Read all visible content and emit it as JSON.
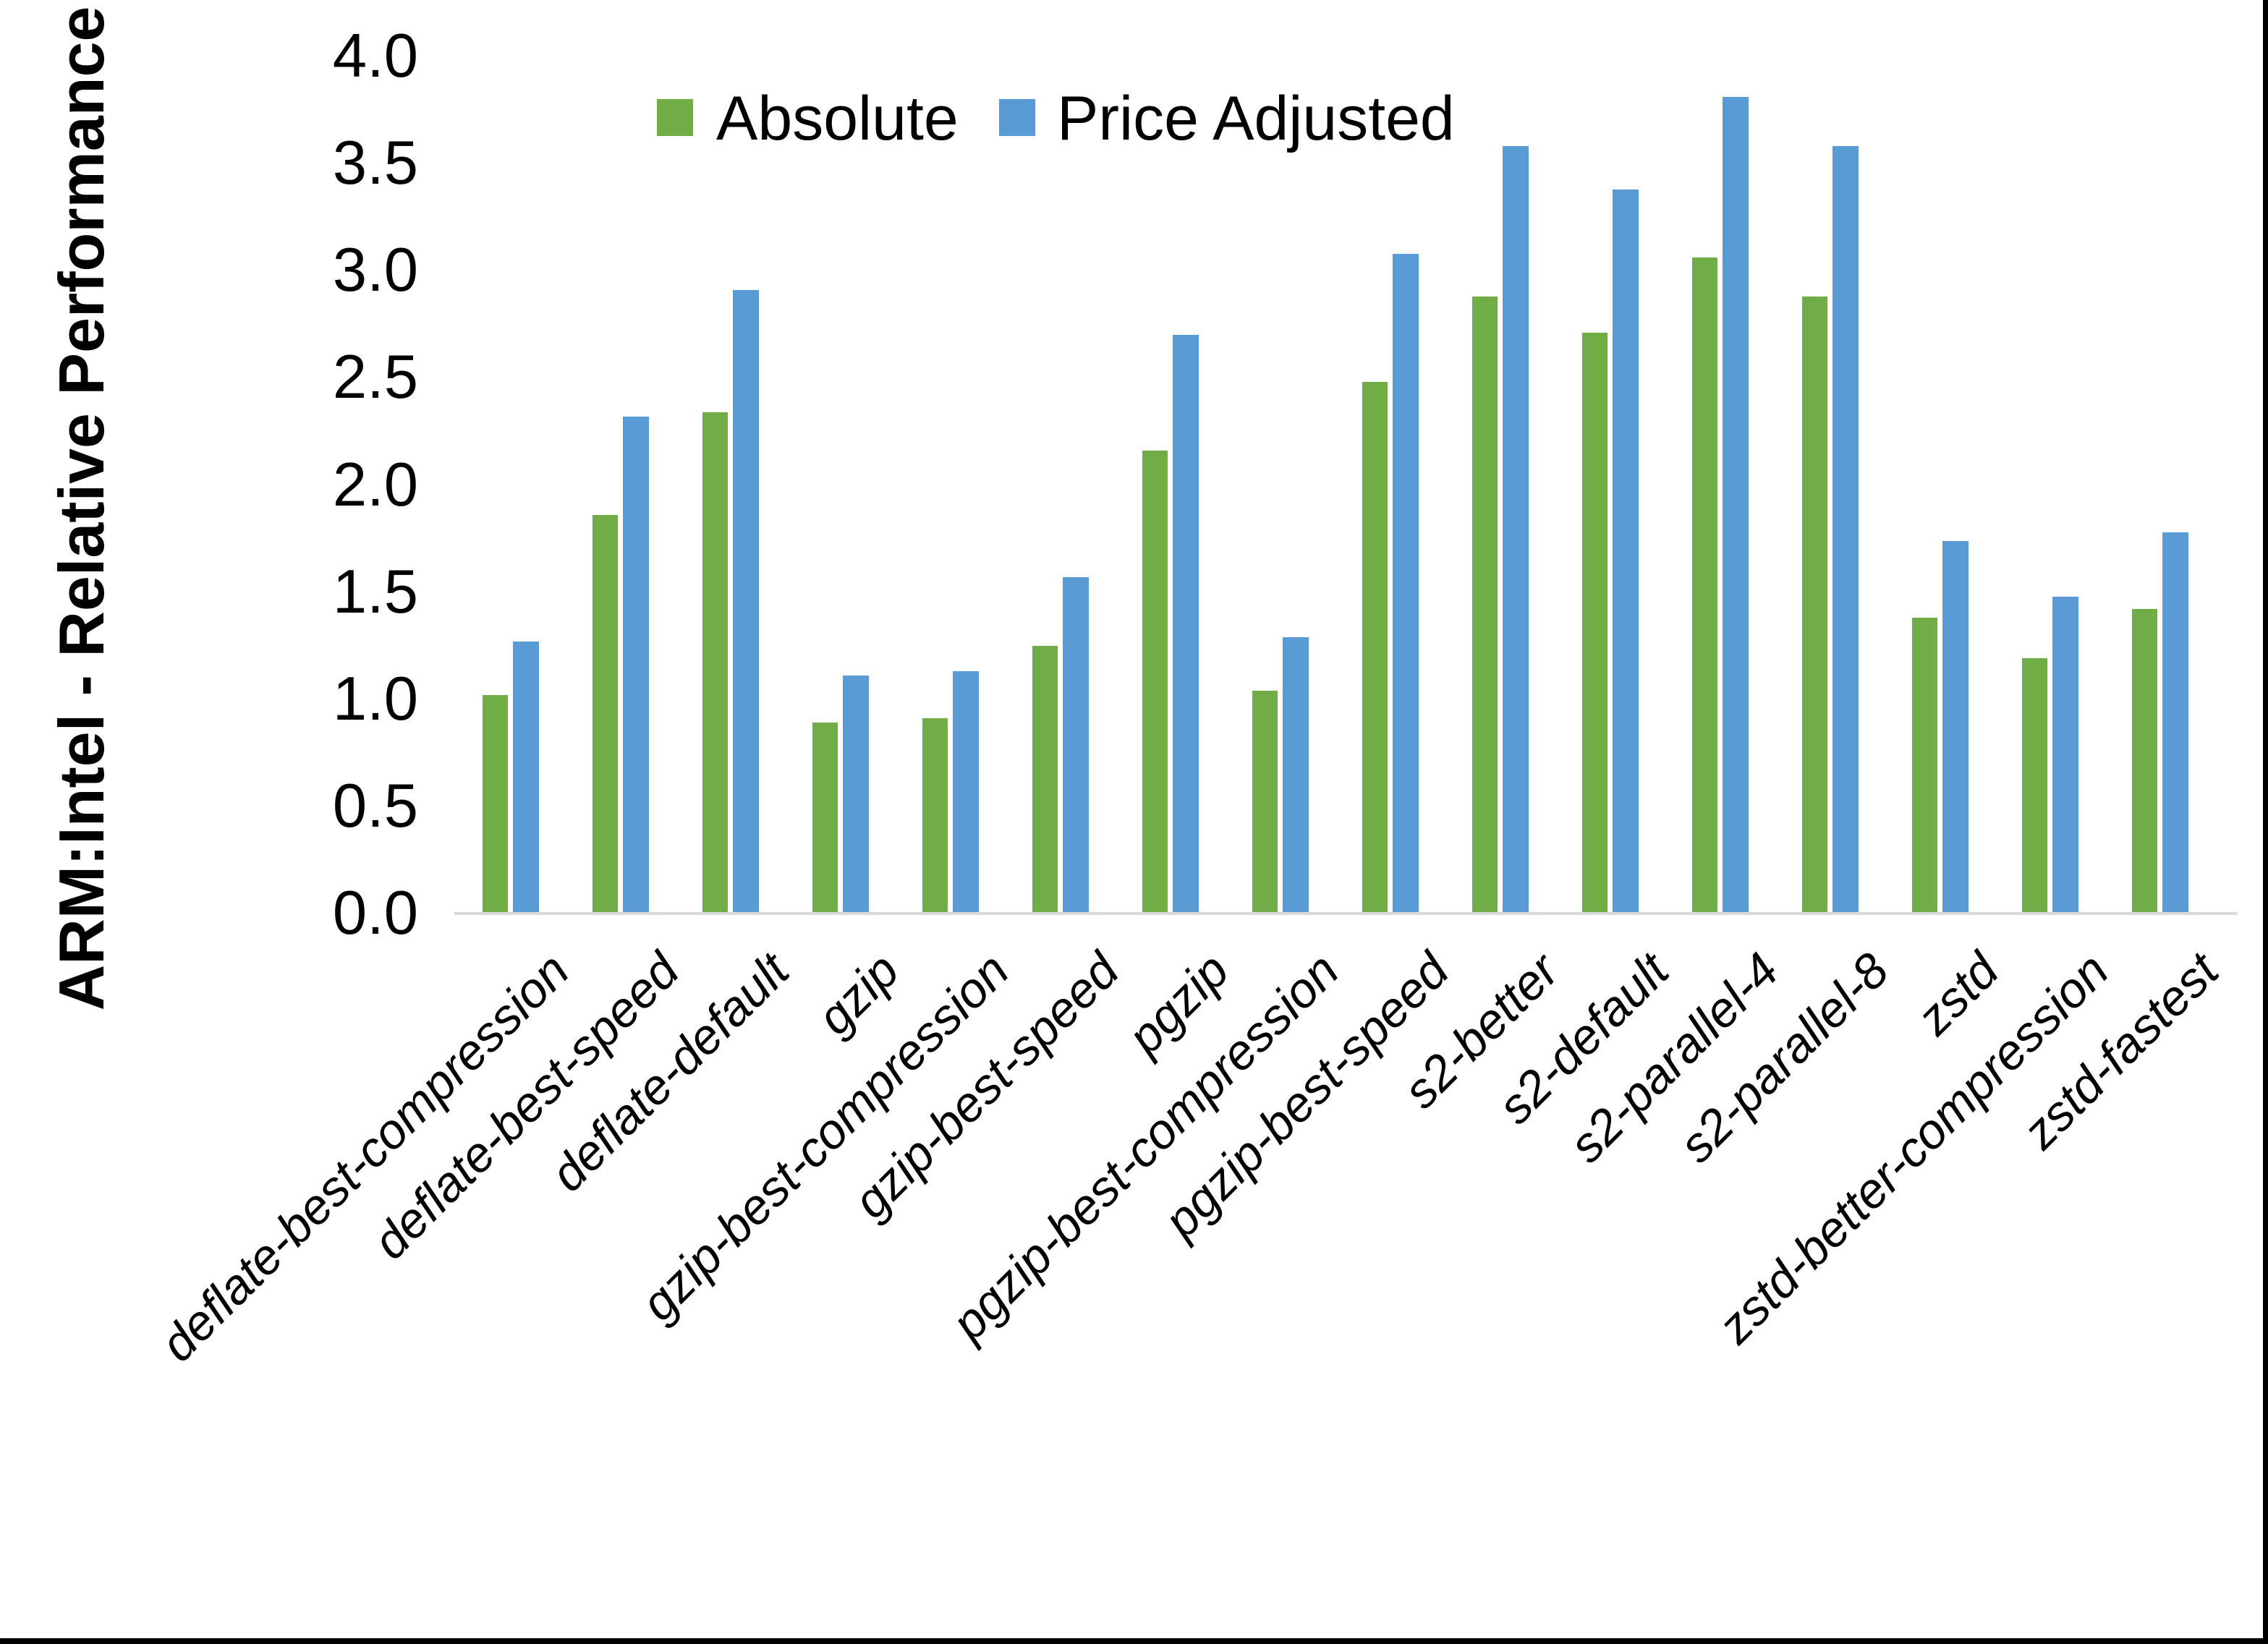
{
  "figure": {
    "y_axis_title": "ARM:Intel - Relative Performance",
    "border_color": "#000000",
    "axis_line_color": "#d9d9d9",
    "background": "#ffffff"
  },
  "legend": {
    "items": [
      {
        "label": "Absolute",
        "color": "#70AD47"
      },
      {
        "label": "Price Adjusted",
        "color": "#5B9BD5"
      }
    ]
  },
  "chart_data": {
    "type": "bar",
    "title": "",
    "xlabel": "",
    "ylabel": "ARM:Intel - Relative Performance",
    "ylim": [
      0.0,
      4.0
    ],
    "ytick_step": 0.5,
    "ytick_labels": [
      "0.0",
      "0.5",
      "1.0",
      "1.5",
      "2.0",
      "2.5",
      "3.0",
      "3.5",
      "4.0"
    ],
    "grid": false,
    "legend_position": "top-center",
    "categories": [
      "deflate-best-compression",
      "deflate-best-speed",
      "deflate-default",
      "gzip",
      "gzip-best-compression",
      "gzip-best-speed",
      "pgzip",
      "pgzip-best-compression",
      "pgzip-best-speed",
      "s2-better",
      "s2-default",
      "s2-parallel-4",
      "s2-parallel-8",
      "zstd",
      "zstd-better-compression",
      "zstd-fastest"
    ],
    "series": [
      {
        "name": "Absolute",
        "color": "#70AD47",
        "values": [
          1.02,
          1.86,
          2.34,
          0.89,
          0.91,
          1.25,
          2.16,
          1.04,
          2.48,
          2.88,
          2.71,
          3.06,
          2.88,
          1.38,
          1.19,
          1.42
        ]
      },
      {
        "name": "Price Adjusted",
        "color": "#5B9BD5",
        "values": [
          1.27,
          2.32,
          2.91,
          1.11,
          1.13,
          1.57,
          2.7,
          1.29,
          3.08,
          3.58,
          3.38,
          3.81,
          3.58,
          1.74,
          1.48,
          1.78
        ]
      }
    ]
  }
}
